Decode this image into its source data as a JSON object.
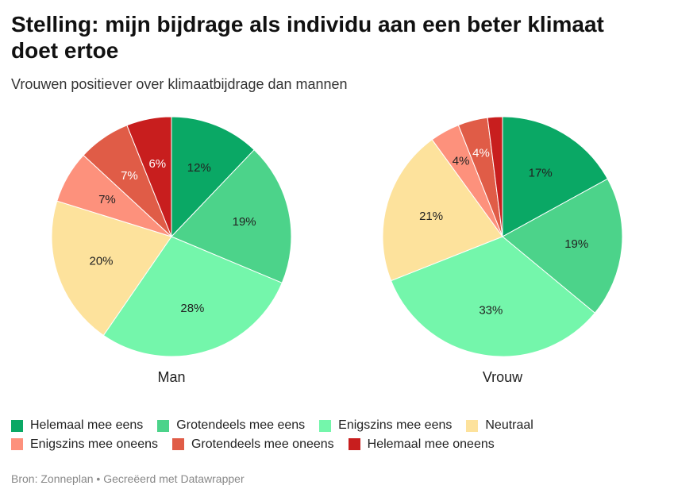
{
  "title": "Stelling: mijn bijdrage als individu aan een beter klimaat doet ertoe",
  "subtitle": "Vrouwen positiever over klimaatbijdrage dan mannen",
  "source": "Bron: Zonneplan • Gecreëerd met Datawrapper",
  "chart_data": {
    "type": "pie",
    "categories": [
      "Helemaal mee eens",
      "Grotendeels mee eens",
      "Enigszins mee eens",
      "Neutraal",
      "Enigszins mee oneens",
      "Grotendeels mee oneens",
      "Helemaal mee oneens"
    ],
    "colors": [
      "#0aa865",
      "#4cd38a",
      "#74f6ab",
      "#fde29c",
      "#fd917c",
      "#e05c47",
      "#c81e1e"
    ],
    "series": [
      {
        "name": "Man",
        "values": [
          12,
          19,
          28,
          20,
          7,
          7,
          6
        ],
        "labels": [
          "12%",
          "19%",
          "28%",
          "20%",
          "7%",
          "7%",
          "6%"
        ]
      },
      {
        "name": "Vrouw",
        "values": [
          17,
          19,
          33,
          21,
          4,
          4,
          2
        ],
        "labels": [
          "17%",
          "19%",
          "33%",
          "21%",
          "4%",
          "4%",
          ""
        ]
      }
    ]
  }
}
